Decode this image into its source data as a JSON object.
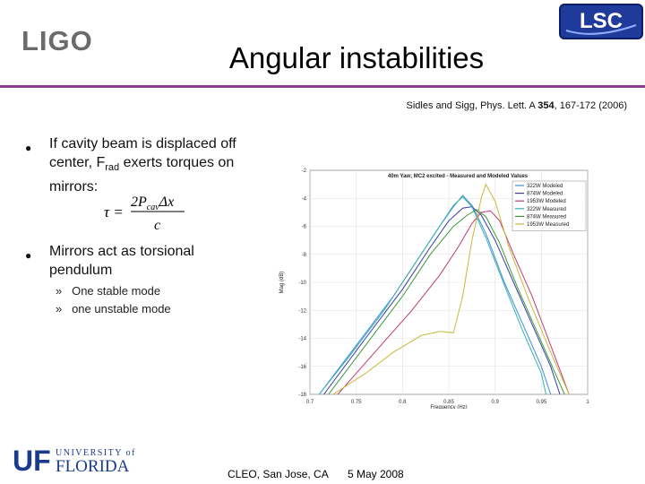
{
  "header": {
    "ligo_logo_text": "LIGO",
    "lsc_logo_text": "LSC",
    "title": "Angular instabilities",
    "accent_color": "#8c3a8c"
  },
  "citation": {
    "text_prefix": "Sidles and Sigg, Phys. Lett. A ",
    "volume": "354",
    "text_suffix": ", 167-172 (2006)"
  },
  "bullets": [
    {
      "pre": "If cavity beam is displaced off center, F",
      "sub": "rad",
      "post": " exerts torques on mirrors:"
    },
    {
      "text": "Mirrors act as torsional pendulum"
    }
  ],
  "equation": {
    "lhs": "τ =",
    "numerator": "2P",
    "numerator_sub": "cav",
    "numerator_tail": "Δx",
    "denominator": "c"
  },
  "sub_bullets": [
    {
      "marker": "»",
      "text": "One stable mode"
    },
    {
      "marker": "»",
      "text": "one unstable mode"
    }
  ],
  "footer": {
    "venue": "CLEO, San Jose, CA",
    "date": "5 May 2008",
    "uf_logo_letters": "UF",
    "uf_logo_line1": "UNIVERSITY of",
    "uf_logo_line2": "FLORIDA"
  },
  "chart_data": {
    "type": "line",
    "title": "40m Yaw; MC2 excited - Measured and Modeled Values",
    "xlabel": "Frequency (Hz)",
    "ylabel": "Mag (dB)",
    "xlim": [
      0.7,
      1.0
    ],
    "ylim": [
      -18,
      -2
    ],
    "xticks": [
      "0.7",
      "0.75",
      "0.8",
      "0.85",
      "0.9",
      "0.95",
      "1"
    ],
    "yticks": [
      "-2",
      "-4",
      "-6",
      "-8",
      "-10",
      "-12",
      "-14",
      "-16",
      "-18"
    ],
    "grid": true,
    "legend_position": "top-right",
    "series": [
      {
        "name": "322W Modeled",
        "color": "#3f8fd8",
        "points": [
          [
            0.71,
            -18
          ],
          [
            0.75,
            -14.5
          ],
          [
            0.79,
            -11
          ],
          [
            0.82,
            -8
          ],
          [
            0.84,
            -6
          ],
          [
            0.855,
            -4.6
          ],
          [
            0.865,
            -3.8
          ],
          [
            0.875,
            -4.5
          ],
          [
            0.89,
            -6.5
          ],
          [
            0.91,
            -10
          ],
          [
            0.93,
            -13
          ],
          [
            0.95,
            -16
          ],
          [
            0.96,
            -18
          ]
        ]
      },
      {
        "name": "874W Modeled",
        "color": "#3a3aa8",
        "points": [
          [
            0.715,
            -18
          ],
          [
            0.76,
            -14
          ],
          [
            0.8,
            -10.5
          ],
          [
            0.83,
            -7.5
          ],
          [
            0.85,
            -5.6
          ],
          [
            0.865,
            -4.7
          ],
          [
            0.875,
            -4.6
          ],
          [
            0.885,
            -5.2
          ],
          [
            0.9,
            -7
          ],
          [
            0.92,
            -10
          ],
          [
            0.94,
            -13
          ],
          [
            0.96,
            -16
          ],
          [
            0.97,
            -18
          ]
        ]
      },
      {
        "name": "1953W Modeled",
        "color": "#c23a7a",
        "points": [
          [
            0.73,
            -18
          ],
          [
            0.77,
            -15
          ],
          [
            0.81,
            -12
          ],
          [
            0.84,
            -9.5
          ],
          [
            0.86,
            -7.5
          ],
          [
            0.875,
            -5.8
          ],
          [
            0.885,
            -5
          ],
          [
            0.895,
            -4.9
          ],
          [
            0.905,
            -5.6
          ],
          [
            0.92,
            -8
          ],
          [
            0.94,
            -11
          ],
          [
            0.96,
            -14.5
          ],
          [
            0.98,
            -18
          ]
        ]
      },
      {
        "name": "322W Measured",
        "color": "#36b0b0",
        "points": [
          [
            0.71,
            -18
          ],
          [
            0.74,
            -15.5
          ],
          [
            0.78,
            -12
          ],
          [
            0.81,
            -9
          ],
          [
            0.835,
            -6.5
          ],
          [
            0.855,
            -4.5
          ],
          [
            0.865,
            -3.9
          ],
          [
            0.875,
            -4.6
          ],
          [
            0.89,
            -6.8
          ],
          [
            0.91,
            -10.2
          ],
          [
            0.93,
            -13.5
          ],
          [
            0.95,
            -16.5
          ],
          [
            0.955,
            -18
          ]
        ]
      },
      {
        "name": "874W Measured",
        "color": "#3a9a3a",
        "points": [
          [
            0.72,
            -18
          ],
          [
            0.76,
            -14.5
          ],
          [
            0.8,
            -11
          ],
          [
            0.83,
            -8
          ],
          [
            0.855,
            -6
          ],
          [
            0.87,
            -5.2
          ],
          [
            0.88,
            -4.8
          ],
          [
            0.89,
            -5.3
          ],
          [
            0.905,
            -7.2
          ],
          [
            0.925,
            -10.5
          ],
          [
            0.945,
            -13.5
          ],
          [
            0.965,
            -16.5
          ],
          [
            0.975,
            -18
          ]
        ]
      },
      {
        "name": "1953W Measured",
        "color": "#c8b83a",
        "points": [
          [
            0.725,
            -18
          ],
          [
            0.76,
            -16.5
          ],
          [
            0.79,
            -15
          ],
          [
            0.82,
            -13.8
          ],
          [
            0.84,
            -13.5
          ],
          [
            0.855,
            -13.6
          ],
          [
            0.865,
            -11
          ],
          [
            0.875,
            -7
          ],
          [
            0.885,
            -4
          ],
          [
            0.89,
            -3
          ],
          [
            0.9,
            -4.2
          ],
          [
            0.915,
            -7.5
          ],
          [
            0.935,
            -11
          ],
          [
            0.96,
            -15
          ],
          [
            0.98,
            -18
          ]
        ]
      }
    ]
  }
}
